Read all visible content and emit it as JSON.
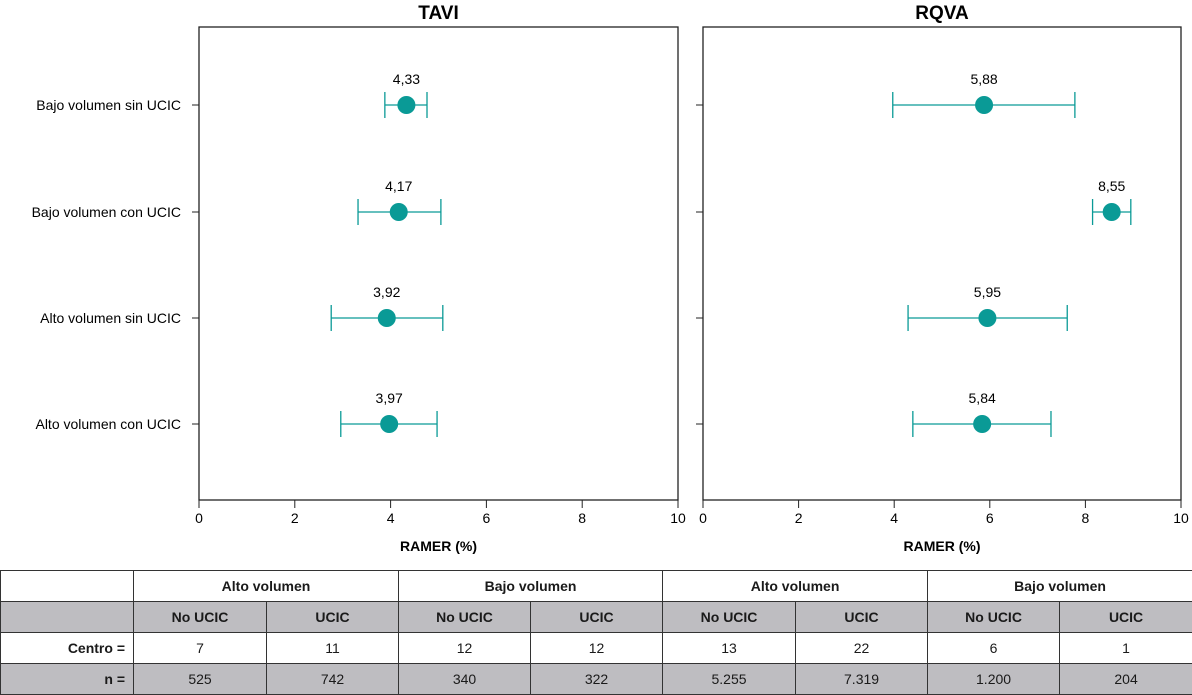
{
  "chart_data": [
    {
      "type": "scatter",
      "subtype": "forest-plot",
      "title": "TAVI",
      "xlabel": "RAMER (%)",
      "ylabel": "",
      "xlim": [
        0,
        10
      ],
      "xticks": [
        0,
        2,
        4,
        6,
        8,
        10
      ],
      "grid": false,
      "categories": [
        "Bajo volumen sin UCIC",
        "Bajo volumen con UCIC",
        "Alto volumen sin UCIC",
        "Alto volumen con UCIC"
      ],
      "values": [
        4.33,
        4.17,
        3.92,
        3.97
      ],
      "labels": [
        "4,33",
        "4,17",
        "3,92",
        "3,97"
      ],
      "ci_low": [
        3.88,
        3.32,
        2.76,
        2.96
      ],
      "ci_high": [
        4.76,
        5.05,
        5.09,
        4.97
      ],
      "color": "#0a9a96"
    },
    {
      "type": "scatter",
      "subtype": "forest-plot",
      "title": "RQVA",
      "xlabel": "RAMER (%)",
      "ylabel": "",
      "xlim": [
        0,
        10
      ],
      "xticks": [
        0,
        2,
        4,
        6,
        8,
        10
      ],
      "grid": false,
      "categories": [
        "Bajo volumen sin UCIC",
        "Bajo volumen con UCIC",
        "Alto volumen sin UCIC",
        "Alto volumen con UCIC"
      ],
      "values": [
        5.88,
        8.55,
        5.95,
        5.84
      ],
      "labels": [
        "5,88",
        "8,55",
        "5,95",
        "5,84"
      ],
      "ci_low": [
        3.97,
        8.15,
        4.29,
        4.39
      ],
      "ci_high": [
        7.78,
        8.95,
        7.62,
        7.28
      ],
      "color": "#0a9a96"
    }
  ],
  "table": {
    "groups": [
      "Alto volumen",
      "Bajo volumen",
      "Alto volumen",
      "Bajo volumen"
    ],
    "subheaders": [
      "No UCIC",
      "UCIC",
      "No UCIC",
      "UCIC",
      "No UCIC",
      "UCIC",
      "No UCIC",
      "UCIC"
    ],
    "rows": [
      {
        "label": "Centro =",
        "values": [
          "7",
          "11",
          "12",
          "12",
          "13",
          "22",
          "6",
          "1"
        ]
      },
      {
        "label": "n =",
        "values": [
          "525",
          "742",
          "340",
          "322",
          "5.255",
          "7.319",
          "1.200",
          "204"
        ]
      }
    ]
  }
}
